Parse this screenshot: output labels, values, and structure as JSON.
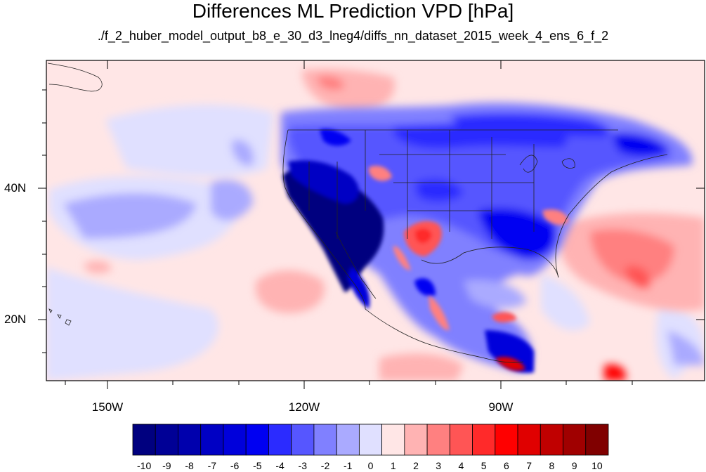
{
  "title": "Differences ML Prediction VPD [hPa]",
  "subtitle": "./f_2_huber_model_output_b8_e_30_d3_lneg4/diffs_nn_dataset_2015_week_4_ens_6_f_2",
  "axes": {
    "lon_labels": [
      "150W",
      "120W",
      "90W"
    ],
    "lat_labels": [
      "40N",
      "20N"
    ]
  },
  "colorbar": {
    "labels": [
      "-10",
      "-9",
      "-8",
      "-7",
      "-6",
      "-5",
      "-4",
      "-3",
      "-2",
      "-1",
      "0",
      "1",
      "2",
      "3",
      "4",
      "5",
      "6",
      "7",
      "8",
      "9",
      "10"
    ],
    "colors": [
      "#00007f",
      "#000096",
      "#0000ad",
      "#0000c4",
      "#0000db",
      "#0000f2",
      "#2b2bff",
      "#5656ff",
      "#8080ff",
      "#aaaaff",
      "#e0e0ff",
      "#ffe6e6",
      "#ffb3b3",
      "#ff8080",
      "#ff5555",
      "#ff2a2a",
      "#ff0000",
      "#e00000",
      "#c00000",
      "#a00000",
      "#800000"
    ]
  }
}
